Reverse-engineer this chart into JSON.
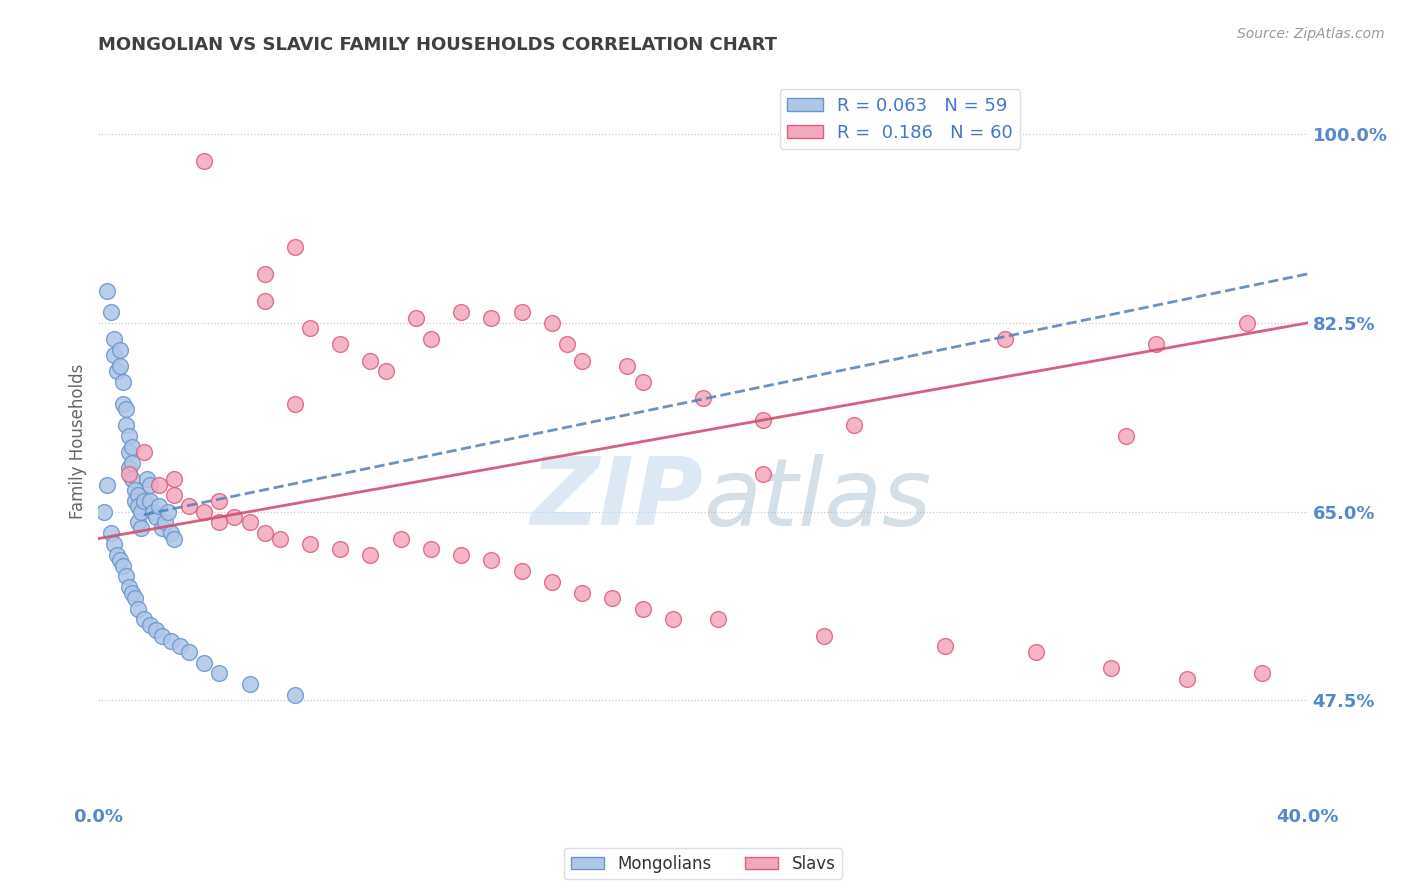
{
  "title": "MONGOLIAN VS SLAVIC FAMILY HOUSEHOLDS CORRELATION CHART",
  "source": "Source: ZipAtlas.com",
  "ylabel": "Family Households",
  "xlabel_mongolians": "Mongolians",
  "xlabel_slavs": "Slavs",
  "watermark_zip": "ZIP",
  "watermark_atlas": "atlas",
  "mongolian_R": 0.063,
  "mongolian_N": 59,
  "slavic_R": 0.186,
  "slavic_N": 60,
  "xlim": [
    0.0,
    40.0
  ],
  "ylim": [
    38.0,
    105.0
  ],
  "yticks": [
    47.5,
    65.0,
    82.5,
    100.0
  ],
  "mongolian_color": "#aec6e8",
  "slavic_color": "#f4a8be",
  "mongolian_edge": "#6895c8",
  "slavic_edge": "#d96080",
  "mongolian_line_color": "#5080b8",
  "slavic_line_color": "#d05070",
  "grid_color": "#c8c8d8",
  "title_color": "#404040",
  "tick_label_color": "#5588cc",
  "legend_text_color": "#333333",
  "legend_value_color": "#4477cc",
  "mongolian_x": [
    0.3,
    0.4,
    0.5,
    0.5,
    0.6,
    0.7,
    0.7,
    0.8,
    0.8,
    0.9,
    0.9,
    1.0,
    1.0,
    1.0,
    1.1,
    1.1,
    1.1,
    1.2,
    1.2,
    1.3,
    1.3,
    1.3,
    1.4,
    1.4,
    1.5,
    1.6,
    1.7,
    1.7,
    1.8,
    1.9,
    2.0,
    2.1,
    2.2,
    2.3,
    2.4,
    2.5,
    0.2,
    0.3,
    0.4,
    0.5,
    0.6,
    0.7,
    0.8,
    0.9,
    1.0,
    1.1,
    1.2,
    1.3,
    1.5,
    1.7,
    1.9,
    2.1,
    2.4,
    2.7,
    3.0,
    3.5,
    4.0,
    5.0,
    6.5
  ],
  "mongolian_y": [
    85.5,
    83.5,
    81.0,
    79.5,
    78.0,
    80.0,
    78.5,
    77.0,
    75.0,
    73.0,
    74.5,
    72.0,
    70.5,
    69.0,
    71.0,
    69.5,
    68.0,
    67.0,
    66.0,
    66.5,
    65.5,
    64.0,
    65.0,
    63.5,
    66.0,
    68.0,
    66.0,
    67.5,
    65.0,
    64.5,
    65.5,
    63.5,
    64.0,
    65.0,
    63.0,
    62.5,
    65.0,
    67.5,
    63.0,
    62.0,
    61.0,
    60.5,
    60.0,
    59.0,
    58.0,
    57.5,
    57.0,
    56.0,
    55.0,
    54.5,
    54.0,
    53.5,
    53.0,
    52.5,
    52.0,
    51.0,
    50.0,
    49.0,
    48.0
  ],
  "slavic_x": [
    3.5,
    5.5,
    5.5,
    6.5,
    7.0,
    8.0,
    9.0,
    9.5,
    10.5,
    11.0,
    12.0,
    13.0,
    14.0,
    15.0,
    15.5,
    16.0,
    17.5,
    18.0,
    20.0,
    22.0,
    25.0,
    30.0,
    35.0,
    38.0,
    1.0,
    1.5,
    2.0,
    2.5,
    3.0,
    3.5,
    4.0,
    4.5,
    5.0,
    5.5,
    6.0,
    7.0,
    8.0,
    9.0,
    10.0,
    11.0,
    12.0,
    13.0,
    14.0,
    15.0,
    16.0,
    17.0,
    18.0,
    19.0,
    20.5,
    24.0,
    28.0,
    31.0,
    33.5,
    36.0,
    38.5,
    2.5,
    4.0,
    6.5,
    22.0,
    34.0
  ],
  "slavic_y": [
    97.5,
    87.0,
    84.5,
    89.5,
    82.0,
    80.5,
    79.0,
    78.0,
    83.0,
    81.0,
    83.5,
    83.0,
    83.5,
    82.5,
    80.5,
    79.0,
    78.5,
    77.0,
    75.5,
    73.5,
    73.0,
    81.0,
    80.5,
    82.5,
    68.5,
    70.5,
    67.5,
    66.5,
    65.5,
    65.0,
    66.0,
    64.5,
    64.0,
    63.0,
    62.5,
    62.0,
    61.5,
    61.0,
    62.5,
    61.5,
    61.0,
    60.5,
    59.5,
    58.5,
    57.5,
    57.0,
    56.0,
    55.0,
    55.0,
    53.5,
    52.5,
    52.0,
    50.5,
    49.5,
    50.0,
    68.0,
    64.0,
    75.0,
    68.5,
    72.0
  ]
}
